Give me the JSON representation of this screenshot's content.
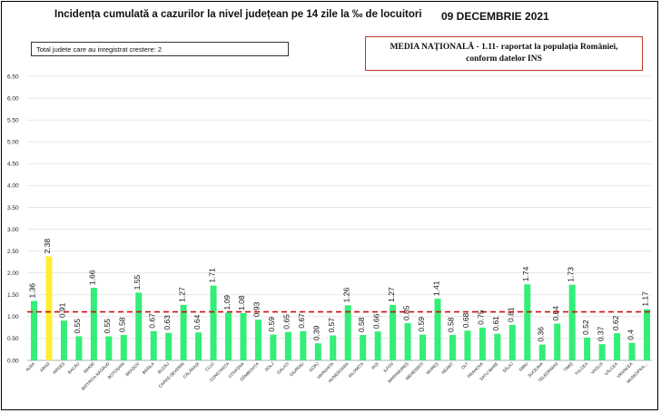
{
  "title": "Incidența cumulată a cazurilor la nivel județean pe 14 zile la ‰ de locuitori",
  "date": "09 DECEMBRIE 2021",
  "info_box": "Total judete care au inregistrat crestere: 2",
  "national_box": {
    "line1": "MEDIA NAȚIONALĂ - 1.11- raportat la populația României,",
    "line2": "conform datelor INS"
  },
  "colors": {
    "bar": "#33ee77",
    "highlight": "#ffee33",
    "average_line": "#cc1111",
    "grid": "#d9d9d9"
  },
  "chart_data": {
    "type": "bar",
    "ylim": [
      0,
      6.5
    ],
    "yticks": [
      "0.00",
      "0.50",
      "1.00",
      "1.50",
      "2.00",
      "2.50",
      "3.00",
      "3.50",
      "4.00",
      "4.50",
      "5.00",
      "5.50",
      "6.00",
      "6.50"
    ],
    "categories": [
      "ALBA",
      "ARAD",
      "ARGEȘ",
      "BACĂU",
      "BIHOR",
      "BISTRIȚA-NĂSĂUD",
      "BOTOȘANI",
      "BRAȘOV",
      "BRĂILA",
      "BUZĂU",
      "CARAȘ-SEVERIN",
      "CĂLĂRAȘI",
      "CLUJ",
      "CONSTANȚA",
      "COVASNA",
      "DÂMBOVIȚA",
      "DOLJ",
      "GALAȚI",
      "GIURGIU",
      "GORJ",
      "HARGHITA",
      "HUNEDOARA",
      "IALOMIȚA",
      "IAȘI",
      "ILFOV",
      "MARAMUREȘ",
      "MEHEDINȚI",
      "MUREȘ",
      "NEAMȚ",
      "OLT",
      "PRAHOVA",
      "SATU MARE",
      "SĂLAJ",
      "SIBIU",
      "SUCEAVA",
      "TELEORMAN",
      "TIMIȘ",
      "TULCEA",
      "VASLUI",
      "VÂLCEA",
      "VRANCEA",
      "MUNICIPIUL..."
    ],
    "values": [
      1.36,
      2.38,
      0.91,
      0.55,
      1.66,
      0.55,
      0.58,
      1.55,
      0.67,
      0.63,
      1.27,
      0.64,
      1.71,
      1.09,
      1.08,
      0.93,
      0.59,
      0.65,
      0.67,
      0.39,
      0.57,
      1.26,
      0.58,
      0.66,
      1.27,
      0.85,
      0.59,
      1.41,
      0.58,
      0.68,
      0.75,
      0.61,
      0.81,
      1.74,
      0.36,
      0.84,
      1.73,
      0.52,
      0.37,
      0.62,
      0.4,
      1.17
    ],
    "labels": [
      "1.36",
      "2.38",
      "0.91",
      "0.55",
      "1.66",
      "0.55",
      "0.58",
      "1.55",
      "0.67",
      "0.63",
      "1.27",
      "0.64",
      "1.71",
      "1.09",
      "1.08",
      "0.93",
      "0.59",
      "0.65",
      "0.67",
      "0.39",
      "0.57",
      "1.26",
      "0.58",
      "0.66",
      "1.27",
      "0.85",
      "0.59",
      "1.41",
      "0.58",
      "0.68",
      "0.75",
      "0.61",
      "0.81",
      "1.74",
      "0.36",
      "0.84",
      "1.73",
      "0.52",
      "0.37",
      "0.62",
      "0.4",
      "1.17"
    ],
    "highlight_index": 1,
    "average": 1.11,
    "grid": true
  }
}
